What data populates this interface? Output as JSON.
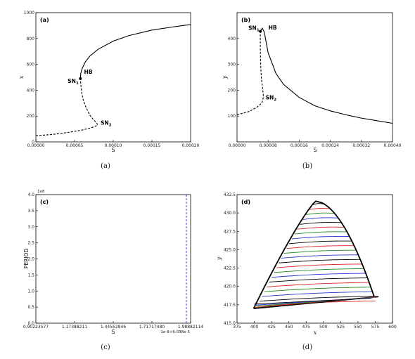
{
  "chart_data": [
    {
      "panel_label": "(a)",
      "caption": "(a)",
      "type": "line",
      "xlabel": "S",
      "ylabel": "x",
      "xlim": [
        0,
        0.0002
      ],
      "ylim": [
        0,
        1000
      ],
      "xticks": [
        "0.00000",
        "0.00005",
        "0.00010",
        "0.00015",
        "0.00020"
      ],
      "yticks": [
        "0",
        "200",
        "400",
        "600",
        "800",
        "1000"
      ],
      "series": [
        {
          "style": "dashed",
          "points": [
            [
              0.0,
              48
            ],
            [
              2e-05,
              57
            ],
            [
              4e-05,
              72
            ],
            [
              6e-05,
              92
            ],
            [
              7.2e-05,
              110
            ],
            [
              7.8e-05,
              125
            ],
            [
              8e-05,
              132
            ],
            [
              7.8e-05,
              150
            ],
            [
              7.4e-05,
              175
            ],
            [
              7e-05,
              205
            ],
            [
              6.7e-05,
              240
            ],
            [
              6.4e-05,
              280
            ],
            [
              6.1e-05,
              330
            ],
            [
              5.9e-05,
              390
            ],
            [
              5.8e-05,
              450
            ],
            [
              5.75e-05,
              490
            ]
          ]
        },
        {
          "style": "solid",
          "points": [
            [
              5.75e-05,
              490
            ],
            [
              5.8e-05,
              530
            ],
            [
              6e-05,
              570
            ],
            [
              6.4e-05,
              620
            ],
            [
              7e-05,
              665
            ],
            [
              8e-05,
              715
            ],
            [
              0.0001,
              780
            ],
            [
              0.00012,
              822
            ],
            [
              0.00015,
              865
            ],
            [
              0.00018,
              892
            ],
            [
              0.0002,
              908
            ]
          ]
        }
      ],
      "annotations": [
        {
          "text": "SN",
          "sub": "1",
          "x": 5.75e-05,
          "y": 490
        },
        {
          "text": "HB",
          "x": 5.95e-05,
          "y": 510
        },
        {
          "text": "SN",
          "sub": "2",
          "x": 8e-05,
          "y": 132
        }
      ]
    },
    {
      "panel_label": "(b)",
      "caption": "(b)",
      "type": "line",
      "xlabel": "S",
      "ylabel": "y",
      "xlim": [
        0,
        0.0004
      ],
      "ylim": [
        0,
        500
      ],
      "xticks": [
        "0.00000",
        "0.00008",
        "0.00016",
        "0.00024",
        "0.00032",
        "0.00040"
      ],
      "yticks": [
        "100",
        "200",
        "300",
        "400"
      ],
      "series": [
        {
          "style": "dashed",
          "points": [
            [
              0.0,
              105
            ],
            [
              3e-05,
              117
            ],
            [
              5e-05,
              133
            ],
            [
              6.4e-05,
              150
            ],
            [
              6.8e-05,
              175
            ],
            [
              6.6e-05,
              205
            ],
            [
              6.3e-05,
              240
            ],
            [
              6.1e-05,
              290
            ],
            [
              6e-05,
              350
            ],
            [
              5.98e-05,
              420
            ],
            [
              6e-05,
              428
            ]
          ]
        },
        {
          "style": "solid",
          "points": [
            [
              6e-05,
              428
            ],
            [
              6.5e-05,
              440
            ],
            [
              7e-05,
              425
            ],
            [
              8e-05,
              345
            ],
            [
              0.0001,
              265
            ],
            [
              0.00012,
              222
            ],
            [
              0.00016,
              172
            ],
            [
              0.0002,
              140
            ],
            [
              0.00024,
              120
            ],
            [
              0.00028,
              105
            ],
            [
              0.00032,
              92
            ],
            [
              0.00036,
              82
            ],
            [
              0.0004,
              72
            ]
          ]
        }
      ],
      "annotations": [
        {
          "text": "SN",
          "sub": "1",
          "x": 6e-05,
          "y": 428
        },
        {
          "text": "HB",
          "x": 6.8e-05,
          "y": 432
        },
        {
          "text": "SN",
          "sub": "2",
          "x": 6.8e-05,
          "y": 175
        }
      ]
    },
    {
      "panel_label": "(c)",
      "caption": "(c)",
      "type": "line",
      "xlabel": "S",
      "ylabel": "PERIOD",
      "y_multiplier": "1e8",
      "x_offset": "1e-8+6.038e-5",
      "xlim": [
        0.90223577,
        1.98882114
      ],
      "ylim": [
        0,
        4.0
      ],
      "xticks": [
        "0.90223577",
        "1.17388211",
        "1.44552846",
        "1.71717480",
        "1.98882114"
      ],
      "yticks": [
        "0.0",
        "0.5",
        "1.0",
        "1.5",
        "2.0",
        "2.5",
        "3.0",
        "3.5",
        "4.0"
      ],
      "series": [
        {
          "style": "dashed",
          "color": "#2233cc",
          "points": [
            [
              1.9585,
              0.0
            ],
            [
              1.9585,
              4.0
            ]
          ]
        }
      ]
    },
    {
      "panel_label": "(d)",
      "caption": "(d)",
      "type": "line",
      "xlabel": "x",
      "ylabel": "y",
      "xlim": [
        375,
        600
      ],
      "ylim": [
        415.0,
        432.5
      ],
      "xticks": [
        "375",
        "400",
        "425",
        "450",
        "475",
        "500",
        "525",
        "550",
        "575",
        "600"
      ],
      "yticks": [
        "415.0",
        "417.5",
        "420.0",
        "422.5",
        "425.0",
        "427.5",
        "430.0",
        "432.5"
      ],
      "series": [
        {
          "name": "",
          "style": "solid",
          "color": "#000000",
          "note": "nested periodic orbits, color cycle black/red/green/blue"
        }
      ]
    }
  ]
}
